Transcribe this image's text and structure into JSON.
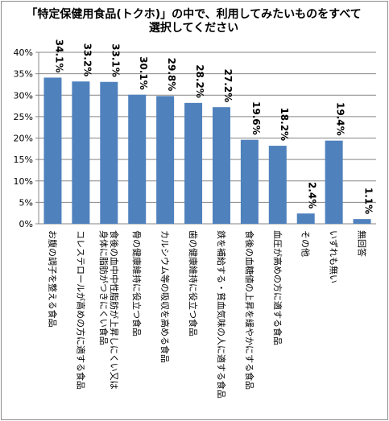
{
  "chart_data": {
    "type": "bar",
    "title": [
      "「特定保健用食品(トクホ)」の中で、利用してみたいものをすべて",
      "選択してください"
    ],
    "categories": [
      "お腹の調子を整える食品",
      "コレステロールが高めの方に適する食品",
      "食後の血中中性脂肪が上昇しにくい又は身体に脂肪がつきにくい食品",
      "骨の健康維持に役立つ食品",
      "カルシウム等の吸収を高める食品",
      "歯の健康維持に役立つ食品",
      "鉄を補給する・貧血気味の人に適する食品",
      "食後の血糖値の上昇を緩やかにする食品",
      "血圧が高めの方に適する食品",
      "その他",
      "いずれも無い",
      "無回答"
    ],
    "label_lines": [
      [
        "お腹の調子を整える食品"
      ],
      [
        "コレステロールが高めの方に適する食品"
      ],
      [
        "食後の血中中性脂肪が上昇しにくい又は",
        "身体に脂肪がつきにくい食品"
      ],
      [
        "骨の健康維持に役立つ食品"
      ],
      [
        "カルシウム等の吸収を高める食品"
      ],
      [
        "歯の健康維持に役立つ食品"
      ],
      [
        "鉄を補給する・貧血気味の人に適する食品"
      ],
      [
        "食後の血糖値の上昇を緩やかにする食品"
      ],
      [
        "血圧が高めの方に適する食品"
      ],
      [
        "その他"
      ],
      [
        "いずれも無い"
      ],
      [
        "無回答"
      ]
    ],
    "values": [
      34.1,
      33.2,
      33.1,
      30.1,
      29.8,
      28.2,
      27.2,
      19.6,
      18.2,
      2.4,
      19.4,
      1.1
    ],
    "data_labels": [
      "34.1%",
      "33.2%",
      "33.1%",
      "30.1%",
      "29.8%",
      "28.2%",
      "27.2%",
      "19.6%",
      "18.2%",
      "2.4%",
      "19.4%",
      "1.1%"
    ],
    "yticks": [
      0,
      5,
      10,
      15,
      20,
      25,
      30,
      35,
      40
    ],
    "ytick_labels": [
      "0%",
      "5%",
      "10%",
      "15%",
      "20%",
      "25%",
      "30%",
      "35%",
      "40%"
    ],
    "ylim": [
      0,
      40
    ],
    "grid": true,
    "bar_color": "#4f81bd",
    "grid_color": "#868686"
  }
}
